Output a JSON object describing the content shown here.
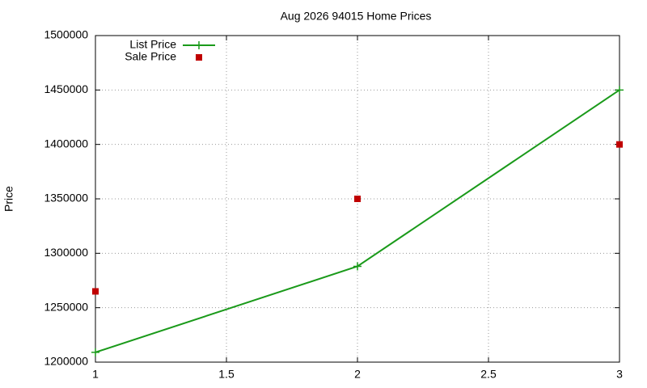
{
  "chart_data": {
    "type": "line",
    "title": "Aug 2026 94015 Home Prices",
    "y_label": "Price",
    "x": [
      1,
      2,
      3
    ],
    "series": [
      {
        "name": "List Price",
        "color": "#1a9a1a",
        "mode": "lines+markers",
        "marker": "plus",
        "values": [
          1209000,
          1288000,
          1450000
        ]
      },
      {
        "name": "Sale Price",
        "color": "#c00000",
        "mode": "markers",
        "marker": "square",
        "values": [
          1265000,
          1350000,
          1400000
        ]
      }
    ],
    "xlim": [
      1,
      3
    ],
    "xticks": [
      1,
      1.5,
      2,
      2.5,
      3
    ],
    "ylim": [
      1200000,
      1500000
    ],
    "yticks": [
      1200000,
      1250000,
      1300000,
      1350000,
      1400000,
      1450000,
      1500000
    ],
    "grid": true,
    "legend": "top-left"
  }
}
